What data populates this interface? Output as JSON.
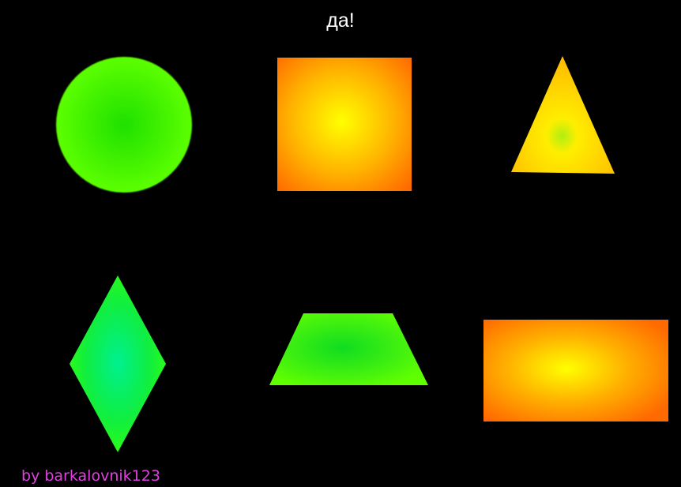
{
  "game": {
    "title": "да!",
    "author": "by barkalovnik123"
  },
  "colors": {
    "background": "#000000",
    "title": "#ffffff",
    "author": "#e040e0",
    "green_center": "#00ff66",
    "green_edge": "#4cff00",
    "yellow_center": "#ffff00",
    "orange_edge": "#ff7a00"
  },
  "shapes": [
    {
      "kind": "circle",
      "fill": "green"
    },
    {
      "kind": "square",
      "fill": "yellow-orange"
    },
    {
      "kind": "triangle",
      "fill": "yellow"
    },
    {
      "kind": "rhombus",
      "fill": "green"
    },
    {
      "kind": "trapezoid",
      "fill": "green"
    },
    {
      "kind": "rectangle",
      "fill": "yellow-orange"
    }
  ]
}
